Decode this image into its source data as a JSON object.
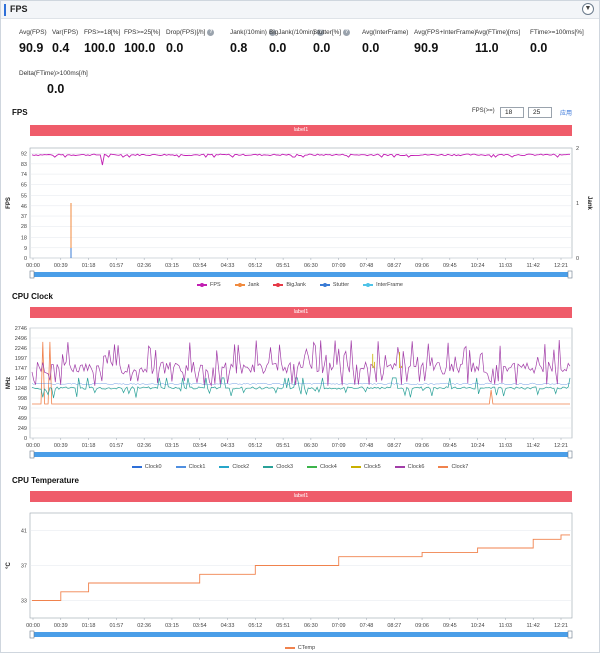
{
  "header": {
    "title": "FPS",
    "collapse_icon": "chevron-down-icon"
  },
  "stats": [
    {
      "label": "Avg(FPS)",
      "value": "90.9",
      "help": false
    },
    {
      "label": "Var(FPS)",
      "value": "0.4",
      "help": false
    },
    {
      "label": "FPS>=18[%]",
      "value": "100.0",
      "help": false
    },
    {
      "label": "FPS>=25[%]",
      "value": "100.0",
      "help": false
    },
    {
      "label": "Drop(FPS)[/h]",
      "value": "0.0",
      "help": true
    },
    {
      "label": "Jank(/10min)",
      "value": "0.8",
      "help": true
    },
    {
      "label": "BigJank(/10min)",
      "value": "0.0",
      "help": true
    },
    {
      "label": "Stutter[%]",
      "value": "0.0",
      "help": true
    },
    {
      "label": "Avg(InterFrame)",
      "value": "0.0",
      "help": false
    },
    {
      "label": "Avg(FPS+InterFrame)",
      "value": "90.9",
      "help": false
    },
    {
      "label": "Avg(FTime)[ms]",
      "value": "11.0",
      "help": false
    },
    {
      "label": "FTime>=100ms[%]",
      "value": "0.0",
      "help": false
    },
    {
      "label": "Delta(FTime)>100ms[/h]",
      "value": "0.0",
      "help": false
    }
  ],
  "time_ticks": [
    "00:00",
    "00:39",
    "01:18",
    "01:57",
    "02:36",
    "03:15",
    "03:54",
    "04:33",
    "05:12",
    "05:51",
    "06:30",
    "07:09",
    "07:48",
    "08:27",
    "09:06",
    "09:45",
    "10:24",
    "11:03",
    "11:42",
    "12:21"
  ],
  "fps_section": {
    "title": "FPS",
    "label_bar": "label1",
    "fps_threshold_label": "FPS(>=)",
    "fps_threshold_1": "18",
    "fps_threshold_2": "25",
    "apply_label": "应用",
    "ylabel": "FPS",
    "ylabel_right": "Jank",
    "legend": [
      "FPS",
      "Jank",
      "BigJank",
      "Stutter",
      "InterFrame"
    ]
  },
  "cpu_clock_section": {
    "title": "CPU Clock",
    "label_bar": "label1",
    "ylabel": "MHz",
    "legend": [
      "Clock0",
      "Clock1",
      "Clock2",
      "Clock3",
      "Clock4",
      "Clock5",
      "Clock6",
      "Clock7"
    ]
  },
  "cpu_temp_section": {
    "title": "CPU Temperature",
    "label_bar": "label1",
    "ylabel": "°C",
    "legend": [
      "CTemp"
    ]
  },
  "colors": {
    "fps": "#c21fb3",
    "jank": "#f08a3e",
    "bigjank": "#e63946",
    "stutter": "#3a7bd5",
    "interframe": "#4fc3e8",
    "clock0": "#2e6fd8",
    "clock1": "#4f8fe0",
    "clock2": "#26a6c9",
    "clock3": "#2aa198",
    "clock4": "#3cb44b",
    "clock5": "#c9b000",
    "clock6": "#a23ea8",
    "clock7": "#f0824d",
    "ctemp": "#f0824d",
    "label_bar": "#ef5c6a",
    "scrollbar": "#4a9ee8"
  },
  "chart_data": [
    {
      "type": "line",
      "title": "FPS",
      "ylabel": "FPS",
      "y_ticks": [
        0,
        9,
        18,
        28,
        37,
        46,
        55,
        65,
        74,
        83,
        92
      ],
      "y_right_ticks": [
        0,
        1,
        2
      ],
      "ylim": [
        0,
        97
      ],
      "y2lim": [
        0,
        2
      ],
      "series": [
        {
          "name": "FPS",
          "approx_value": 91,
          "min_dip": 82
        },
        {
          "name": "Jank",
          "spike_at": "00:58",
          "spike_value": 1
        }
      ]
    },
    {
      "type": "line",
      "title": "CPU Clock",
      "ylabel": "MHz",
      "y_ticks": [
        0,
        249,
        499,
        749,
        998,
        1248,
        1497,
        1747,
        1997,
        2246,
        2496,
        2746
      ],
      "ylim": [
        0,
        2746
      ],
      "series": [
        {
          "name": "Clock6",
          "base": 1747,
          "range": [
            1248,
            2496
          ]
        },
        {
          "name": "Clock3",
          "base": 1248,
          "range": [
            998,
            1497
          ]
        },
        {
          "name": "Clock7",
          "base": 849,
          "range": [
            849,
            2400
          ]
        }
      ]
    },
    {
      "type": "line",
      "title": "CPU Temperature",
      "ylabel": "°C",
      "y_ticks": [
        33,
        37,
        41
      ],
      "ylim": [
        31,
        43
      ],
      "series": [
        {
          "name": "CTemp",
          "x": [
            "00:00",
            "00:39",
            "01:18",
            "03:54",
            "05:12",
            "07:09",
            "09:06",
            "10:24",
            "11:42",
            "12:21"
          ],
          "y": [
            33,
            34,
            35,
            36,
            37,
            38,
            38.5,
            39,
            40,
            40.5
          ]
        }
      ]
    }
  ]
}
